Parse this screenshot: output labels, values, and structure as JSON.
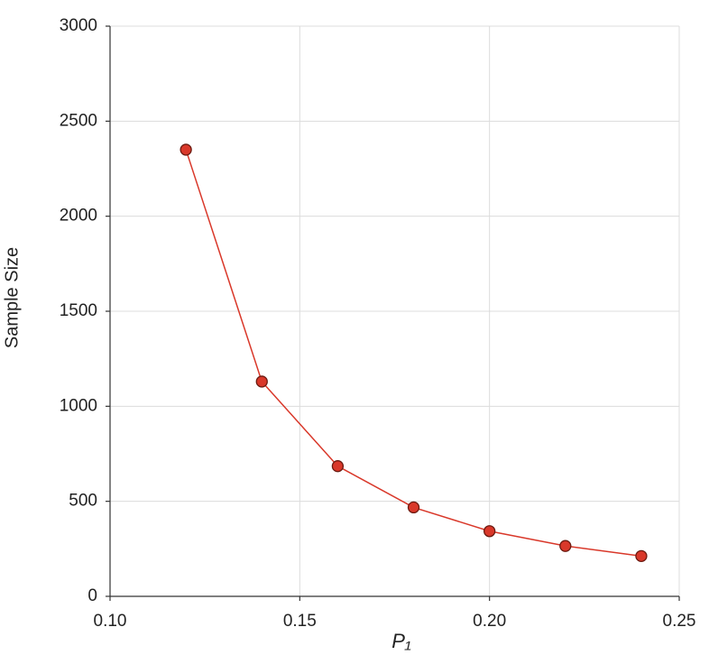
{
  "chart_data": {
    "type": "line",
    "x_label": "P₁",
    "y_label": "Sample Size",
    "x": [
      0.12,
      0.14,
      0.16,
      0.18,
      0.2,
      0.22,
      0.24
    ],
    "series": [
      {
        "name": "Sample Size",
        "color": "#d9382a",
        "values": [
          2350,
          1130,
          685,
          468,
          343,
          265,
          212
        ]
      }
    ],
    "xlim": [
      0.1,
      0.25
    ],
    "xticks": [
      {
        "value": 0.1,
        "label": "0.10"
      },
      {
        "value": 0.15,
        "label": "0.15"
      },
      {
        "value": 0.2,
        "label": "0.20"
      },
      {
        "value": 0.25,
        "label": "0.25"
      }
    ],
    "ylim": [
      0,
      3000
    ],
    "yticks": [
      0,
      500,
      1000,
      1500,
      2000,
      2500,
      3000
    ],
    "grid": true
  }
}
